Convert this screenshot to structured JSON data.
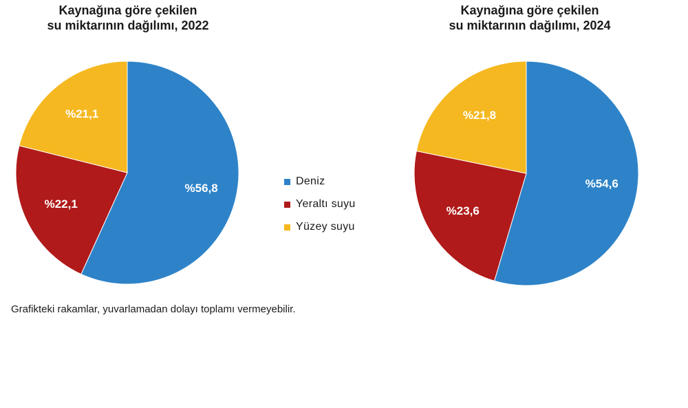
{
  "legend": [
    {
      "label": "Deniz",
      "color": "#2e83c8"
    },
    {
      "label": "Yeraltı suyu",
      "color": "#b01a1a"
    },
    {
      "label": "Yüzey suyu",
      "color": "#f5b820"
    }
  ],
  "footnote": "Grafikteki rakamlar, yuvarlamadan dolayı toplamı vermeyebilir.",
  "chart_data": [
    {
      "type": "pie",
      "title": [
        "Kaynağına göre çekilen",
        "su miktarının dağılımı, 2022"
      ],
      "series": [
        {
          "name": "Deniz",
          "value": 56.8,
          "label": "%56,8",
          "color": "#2e83c8"
        },
        {
          "name": "Yeraltı suyu",
          "value": 22.1,
          "label": "%22,1",
          "color": "#b01a1a"
        },
        {
          "name": "Yüzey suyu",
          "value": 21.1,
          "label": "%21,1",
          "color": "#f5b820"
        }
      ],
      "start": "top, clockwise"
    },
    {
      "type": "pie",
      "title": [
        "Kaynağına göre çekilen",
        "su miktarının dağılımı, 2024"
      ],
      "series": [
        {
          "name": "Deniz",
          "value": 54.6,
          "label": "%54,6",
          "color": "#2e83c8"
        },
        {
          "name": "Yeraltı suyu",
          "value": 23.6,
          "label": "%23,6",
          "color": "#b01a1a"
        },
        {
          "name": "Yüzey suyu",
          "value": 21.8,
          "label": "%21,8",
          "color": "#f5b820"
        }
      ],
      "start": "top, clockwise"
    }
  ]
}
